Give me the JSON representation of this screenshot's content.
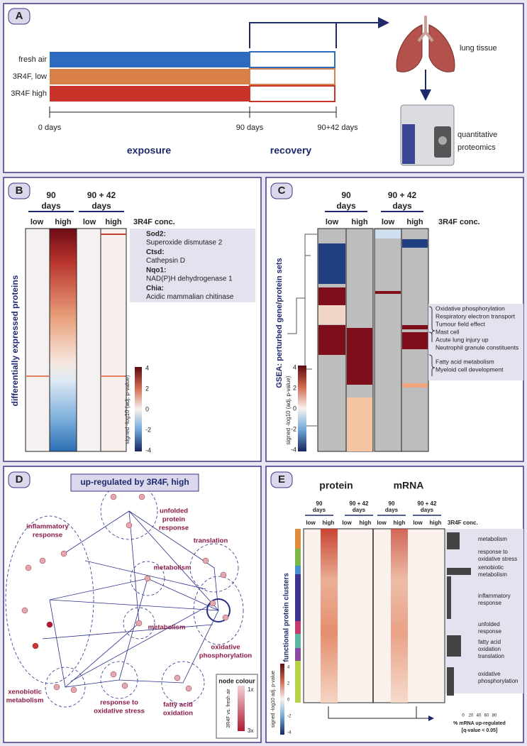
{
  "panel_a": {
    "label": "A",
    "rows": [
      "fresh air",
      "3R4F, low",
      "3R4F high"
    ],
    "timepoints": [
      "0 days",
      "90 days",
      "90+42 days"
    ],
    "phases": [
      "exposure",
      "recovery"
    ],
    "steps": [
      "lung tissue",
      "quantitative",
      "proteomics"
    ]
  },
  "panel_b": {
    "label": "B",
    "groups": [
      [
        "90",
        "days"
      ],
      [
        "90 + 42",
        "days"
      ]
    ],
    "columns": [
      "low",
      "high",
      "low",
      "high"
    ],
    "conc_label": "3R4F conc.",
    "y_label": "differentially expressed proteins",
    "annotations": [
      {
        "gene": "Sod2:",
        "name": "Superoxide dismutase 2"
      },
      {
        "gene": "Ctsd:",
        "name": "Cathepsin D"
      },
      {
        "gene": "Nqo1:",
        "name": "NAD(P)H dehydrogenase 1"
      },
      {
        "gene": "Chia:",
        "name": "Acidic mammalian chitinase"
      }
    ],
    "colorbar": {
      "label": "signed -log10 (adj. p-value)",
      "ticks": [
        4,
        2,
        0,
        -2,
        -4
      ]
    }
  },
  "panel_c": {
    "label": "C",
    "groups": [
      [
        "90",
        "days"
      ],
      [
        "90 + 42",
        "days"
      ]
    ],
    "columns": [
      "low",
      "high",
      "low",
      "high"
    ],
    "conc_label": "3R4F conc.",
    "y_label": "GSEA: perturbed gene/protein sets",
    "annotations": [
      "Oxidative phosphorylation",
      "Respiratory electron transport",
      "Tumour field effect",
      "Mast cell",
      "Acute lung injury up",
      "Neutrophil granule constituents",
      "Fatty acid metabolism",
      "Myeloid cell development"
    ],
    "colorbar": {
      "label": "signed -log10 (adj. p-value)",
      "ticks": [
        4,
        2,
        0,
        -2,
        -4
      ]
    }
  },
  "panel_d": {
    "label": "D",
    "title": "up-regulated by 3R4F, high",
    "clusters": [
      [
        "inflammatory",
        "response"
      ],
      [
        "unfolded",
        "protein",
        "response"
      ],
      [
        "translation"
      ],
      [
        "metabolism"
      ],
      [
        "metabolism"
      ],
      [
        "oxidative",
        "phosphorylation"
      ],
      [
        "xenobiotic",
        "metabolism"
      ],
      [
        "response to",
        "oxidative stress"
      ],
      [
        "fatty acid",
        "oxidation"
      ]
    ],
    "legend": {
      "title": "node colour",
      "low": "1x",
      "high": "3x",
      "axis": "3R4F vs. fresh air"
    }
  },
  "panel_e": {
    "label": "E",
    "headers": [
      "protein",
      "mRNA"
    ],
    "groups": [
      [
        "90",
        "days"
      ],
      [
        "90 + 42",
        "days"
      ],
      [
        "90",
        "days"
      ],
      [
        "90 + 42",
        "days"
      ]
    ],
    "columns": [
      "low",
      "high",
      "low",
      "high",
      "low",
      "high",
      "low",
      "high"
    ],
    "conc_label": "3R4F conc.",
    "clusters": [
      [
        "metabolism"
      ],
      [
        "response to",
        "oxidative stress"
      ],
      [
        "xenobiotic",
        "metabolism"
      ],
      [
        "inflammatory",
        "response"
      ],
      [
        "unfolded",
        "response"
      ],
      [
        "fatty acid",
        "oxidation"
      ],
      [
        "translation"
      ],
      [
        "oxidative",
        "phosphorylation"
      ]
    ],
    "y_label": "functional protein clusters",
    "colorbar": {
      "label": "signed -log10 adj. p-value",
      "ticks": [
        4,
        2,
        0,
        -2,
        -4
      ]
    },
    "bar_axis": {
      "ticks": [
        0,
        20,
        40,
        60,
        80
      ],
      "label": [
        "% mRNA up-regulated",
        "[q-value < 0.05]"
      ]
    }
  }
}
